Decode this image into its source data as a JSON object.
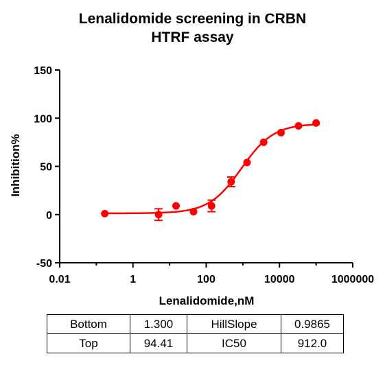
{
  "chart_data": {
    "type": "scatter",
    "title": [
      "Lenalidomide screening in CRBN",
      "HTRF assay"
    ],
    "xlabel": "Lenalidomide,nM",
    "ylabel": "Inhibition%",
    "x_scale": "log",
    "xlim": [
      0.01,
      1000000
    ],
    "ylim": [
      -50,
      150
    ],
    "x_ticks": [
      {
        "value": 0.01,
        "label": "0.01"
      },
      {
        "value": 1,
        "label": "1"
      },
      {
        "value": 100,
        "label": "100"
      },
      {
        "value": 10000,
        "label": "10000"
      },
      {
        "value": 1000000,
        "label": "1000000"
      }
    ],
    "y_ticks": [
      {
        "value": -50,
        "label": "-50"
      },
      {
        "value": 0,
        "label": "0"
      },
      {
        "value": 50,
        "label": "50"
      },
      {
        "value": 100,
        "label": "100"
      },
      {
        "value": 150,
        "label": "150"
      }
    ],
    "points": [
      {
        "x": 0.17,
        "y": 1,
        "err": 0
      },
      {
        "x": 5,
        "y": 0,
        "err": 6
      },
      {
        "x": 15,
        "y": 9,
        "err": 0
      },
      {
        "x": 45,
        "y": 3,
        "err": 0
      },
      {
        "x": 140,
        "y": 9,
        "err": 6
      },
      {
        "x": 480,
        "y": 34,
        "err": 5
      },
      {
        "x": 1300,
        "y": 54,
        "err": 0
      },
      {
        "x": 3700,
        "y": 75,
        "err": 0
      },
      {
        "x": 11000,
        "y": 85,
        "err": 0
      },
      {
        "x": 33000,
        "y": 92,
        "err": 0
      },
      {
        "x": 100000,
        "y": 95,
        "err": 0
      }
    ],
    "fit": {
      "bottom": 1.3,
      "top": 94.41,
      "ic50": 912.0,
      "hill_slope": 0.9865
    },
    "color": "#ff0000",
    "grid": false
  },
  "params_table": {
    "rows": [
      {
        "k1": "Bottom",
        "v1": "1.300",
        "k2": "HillSlope",
        "v2": "0.9865"
      },
      {
        "k1": "Top",
        "v1": "94.41",
        "k2": "IC50",
        "v2": "912.0"
      }
    ]
  }
}
